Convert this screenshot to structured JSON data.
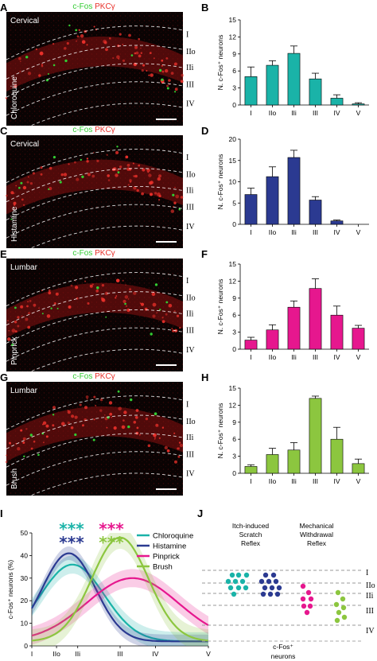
{
  "panel_letters": [
    "A",
    "B",
    "C",
    "D",
    "E",
    "F",
    "G",
    "H",
    "I",
    "J"
  ],
  "micrographs": [
    {
      "letter": "A",
      "region": "Cervical",
      "stimulus": "Chloroquine",
      "fos": "c-Fos",
      "pkc": "PKCγ",
      "laminae": [
        "I",
        "IIo",
        "IIi",
        "III",
        "IV"
      ]
    },
    {
      "letter": "C",
      "region": "Cervical",
      "stimulus": "Histamine",
      "fos": "c-Fos",
      "pkc": "PKCγ",
      "laminae": [
        "I",
        "IIo",
        "IIi",
        "III",
        "IV"
      ]
    },
    {
      "letter": "E",
      "region": "Lumbar",
      "stimulus": "Pinprick",
      "fos": "c-Fos",
      "pkc": "PKCγ",
      "laminae": [
        "I",
        "IIo",
        "IIi",
        "III",
        "IV"
      ]
    },
    {
      "letter": "G",
      "region": "Lumbar",
      "stimulus": "Brush",
      "fos": "c-Fos",
      "pkc": "PKCγ",
      "laminae": [
        "I",
        "IIo",
        "IIi",
        "III",
        "IV"
      ]
    }
  ],
  "colors": {
    "chloroquine": "#1ab3a8",
    "histamine": "#2b3a91",
    "pinprick": "#e6178e",
    "brush": "#8cc63f",
    "fos": "#33cc33",
    "pkc": "#e8302a"
  },
  "chart_data": [
    {
      "type": "bar",
      "panel": "B",
      "categories": [
        "I",
        "IIo",
        "IIi",
        "III",
        "IV",
        "V"
      ],
      "values": [
        5.0,
        7.0,
        9.1,
        4.6,
        1.2,
        0.2
      ],
      "errors": [
        1.7,
        0.8,
        1.3,
        1.0,
        0.6,
        0.2
      ],
      "ylabel": "N. c-Fos⁺ neurons",
      "ylim": [
        0,
        15
      ],
      "yticks": [
        0,
        3,
        6,
        9,
        12,
        15
      ],
      "color": "#1ab3a8"
    },
    {
      "type": "bar",
      "panel": "D",
      "categories": [
        "I",
        "IIo",
        "IIi",
        "III",
        "IV",
        "V"
      ],
      "values": [
        7.0,
        11.2,
        15.7,
        5.7,
        0.8,
        0
      ],
      "errors": [
        1.5,
        2.3,
        1.7,
        0.8,
        0.2,
        0
      ],
      "ylabel": "N. c-Fos⁺ neurons",
      "ylim": [
        0,
        20
      ],
      "yticks": [
        0,
        5,
        10,
        15,
        20
      ],
      "color": "#2b3a91"
    },
    {
      "type": "bar",
      "panel": "F",
      "categories": [
        "I",
        "IIo",
        "IIi",
        "III",
        "IV",
        "V"
      ],
      "values": [
        1.6,
        3.4,
        7.4,
        10.7,
        6.0,
        3.7
      ],
      "errors": [
        0.5,
        0.9,
        1.1,
        1.7,
        1.6,
        0.5
      ],
      "ylabel": "N. c-Fos⁺ neurons",
      "ylim": [
        0,
        15
      ],
      "yticks": [
        0,
        3,
        6,
        9,
        12,
        15
      ],
      "color": "#e6178e"
    },
    {
      "type": "bar",
      "panel": "H",
      "categories": [
        "I",
        "IIo",
        "IIi",
        "III",
        "IV",
        "V"
      ],
      "values": [
        1.2,
        3.3,
        4.1,
        13.2,
        6.0,
        1.7
      ],
      "errors": [
        0.3,
        1.1,
        1.3,
        0.4,
        2.1,
        0.8
      ],
      "ylabel": "N. c-Fos⁺ neurons",
      "ylim": [
        0,
        15
      ],
      "yticks": [
        0,
        3,
        6,
        9,
        12,
        15
      ],
      "color": "#8cc63f"
    },
    {
      "type": "line",
      "panel": "I",
      "ylabel": "c-Fos⁺ neurons (%)",
      "ylim": [
        0,
        50
      ],
      "yticks": [
        0,
        10,
        20,
        30,
        40,
        50
      ],
      "xticks": [
        "I",
        "IIo",
        "IIi",
        "III",
        "IV",
        "V"
      ],
      "xtick_pos": [
        0,
        0.7,
        1.3,
        2.5,
        3.5,
        5
      ],
      "xlim": [
        0,
        5
      ],
      "series": [
        {
          "name": "Chloroquine",
          "color": "#1ab3a8",
          "peak": 1.15,
          "amp": 34,
          "sigma": 0.9,
          "band": 4
        },
        {
          "name": "Histamine",
          "color": "#2b3a91",
          "peak": 1.05,
          "amp": 39,
          "sigma": 0.75,
          "band": 3
        },
        {
          "name": "Pinprick",
          "color": "#e6178e",
          "peak": 2.85,
          "amp": 28,
          "sigma": 1.3,
          "band": 4
        },
        {
          "name": "Brush",
          "color": "#8cc63f",
          "peak": 2.5,
          "amp": 46,
          "sigma": 0.8,
          "band": 5
        }
      ],
      "significance": [
        {
          "text": "***",
          "color": "#1ab3a8"
        },
        {
          "text": "***",
          "color": "#2b3a91"
        },
        {
          "text": "***",
          "color": "#e6178e"
        },
        {
          "text": "***",
          "color": "#8cc63f"
        }
      ]
    }
  ],
  "diagram_J": {
    "left_title": [
      "Itch-induced",
      "Scratch",
      "Reflex"
    ],
    "right_title": [
      "Mechanical",
      "Withdrawal",
      "Reflex"
    ],
    "laminae": [
      "I",
      "IIo",
      "IIi",
      "III",
      "IV"
    ],
    "caption": [
      "c-Fos⁺",
      "neurons"
    ]
  }
}
